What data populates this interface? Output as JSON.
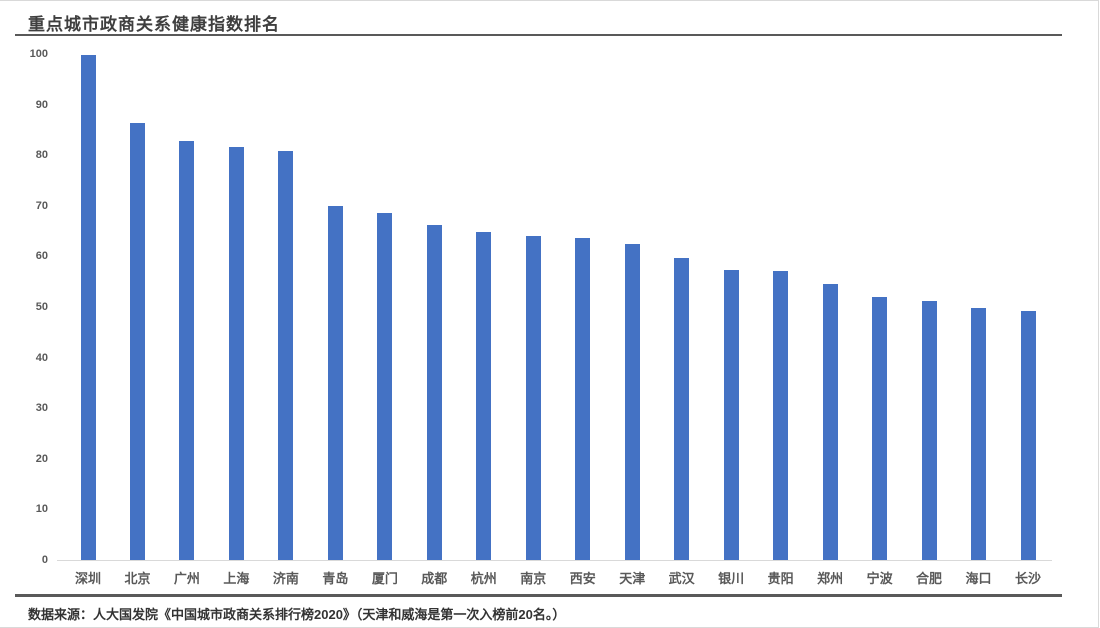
{
  "page": {
    "title": "重点城市政商关系健康指数排名",
    "source_note": "数据来源：人大国发院《中国城市政商关系排行榜2020》（天津和威海是第一次入榜前20名。）"
  },
  "colors": {
    "bar": "#4472C4",
    "title_text": "#3F3F3F",
    "axis_text": "#595959",
    "rule": "#595959",
    "axis_line": "#D9D9D9",
    "background": "#FFFFFF"
  },
  "chart_data": {
    "type": "bar",
    "title": "重点城市政商关系健康指数排名",
    "categories": [
      "深圳",
      "北京",
      "广州",
      "上海",
      "济南",
      "青岛",
      "厦门",
      "成都",
      "杭州",
      "南京",
      "西安",
      "天津",
      "武汉",
      "银川",
      "贵阳",
      "郑州",
      "宁波",
      "合肥",
      "海口",
      "长沙"
    ],
    "values": [
      99.8,
      86.3,
      82.9,
      81.6,
      80.9,
      69.9,
      68.5,
      66.3,
      64.8,
      64.1,
      63.6,
      62.5,
      59.7,
      57.3,
      57.2,
      54.6,
      52.0,
      51.1,
      49.9,
      49.3
    ],
    "xlabel": "",
    "ylabel": "",
    "ylim": [
      0,
      100
    ],
    "y_ticks": [
      0,
      10,
      20,
      30,
      40,
      50,
      60,
      70,
      80,
      90,
      100
    ],
    "grid": false,
    "legend": false,
    "bar_color": "#4472C4",
    "source_note": "数据来源：人大国发院《中国城市政商关系排行榜2020》（天津和威海是第一次入榜前20名。）"
  }
}
